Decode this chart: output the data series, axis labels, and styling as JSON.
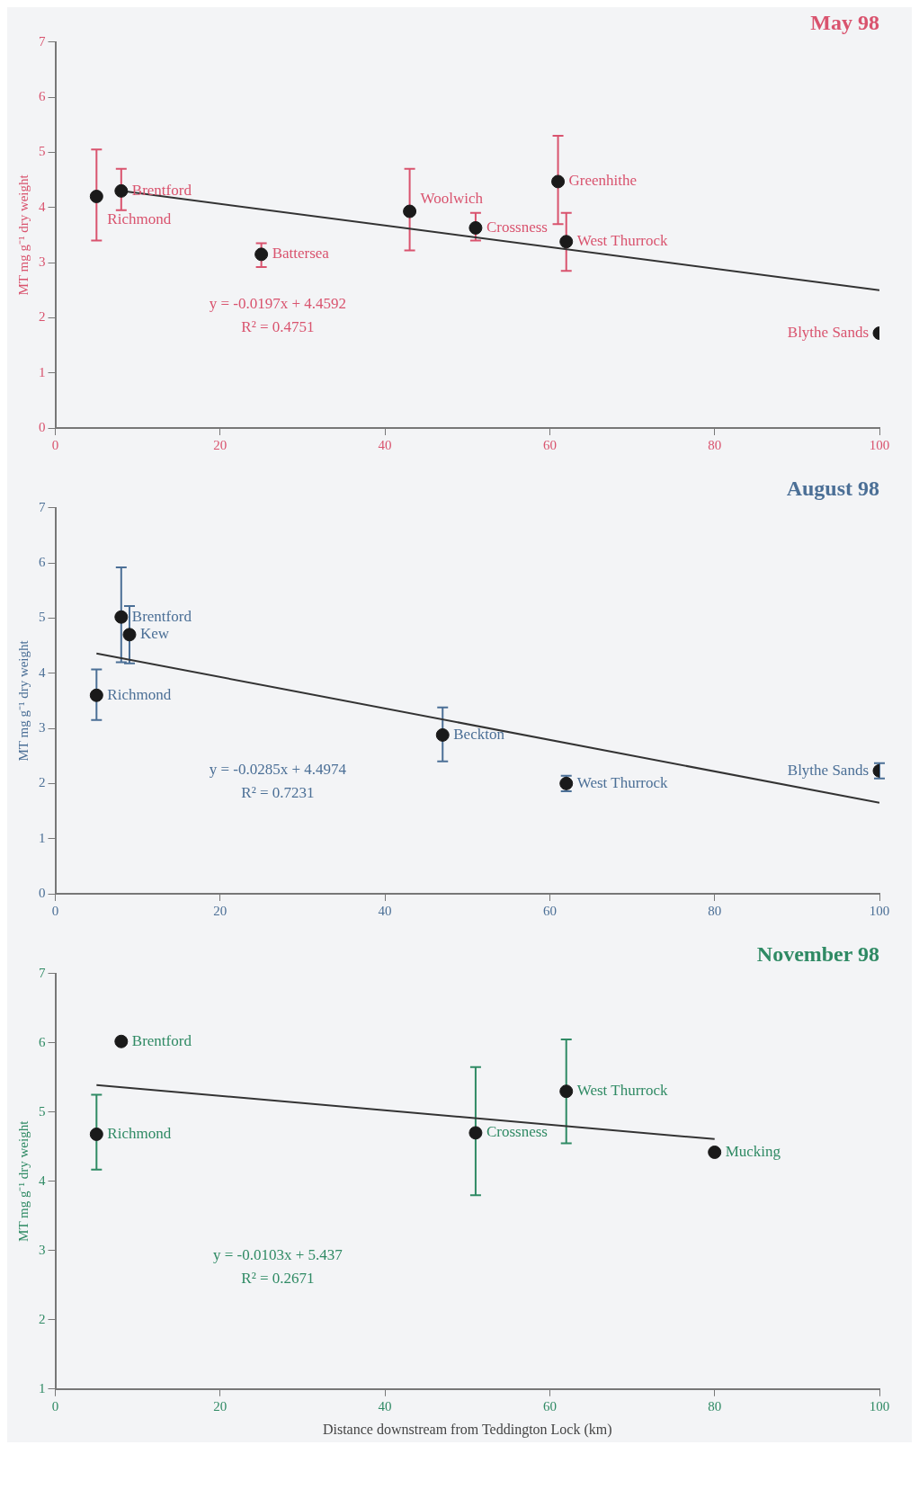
{
  "chart_data": [
    {
      "type": "scatter",
      "title": "May 98",
      "ylabel": "MT mg g⁻¹ dry weight",
      "xlim": [
        0,
        100
      ],
      "xticks": [
        0,
        20,
        40,
        60,
        80,
        100
      ],
      "ylim": [
        0,
        7
      ],
      "yticks": [
        0,
        1,
        2,
        3,
        4,
        5,
        6,
        7
      ],
      "grid": false,
      "legend": false,
      "series": [
        {
          "marker": "circle",
          "color": "#1a1a1a",
          "x": [
            5,
            8,
            25,
            43,
            51,
            61,
            62,
            100
          ],
          "values": [
            4.2,
            4.3,
            3.15,
            3.93,
            3.63,
            4.47,
            3.38,
            1.72
          ],
          "errors": [
            [
              3.4,
              5.05
            ],
            [
              3.95,
              4.7
            ],
            [
              2.92,
              3.35
            ],
            [
              3.22,
              4.7
            ],
            [
              3.4,
              3.9
            ],
            [
              3.7,
              5.3
            ],
            [
              2.85,
              3.9
            ],
            null
          ]
        },
        {
          "type": "line",
          "marker": "none",
          "color": "#333333",
          "x": [
            8,
            100
          ],
          "values": [
            4.3,
            2.5
          ]
        }
      ],
      "annotations": [
        "y = -0.0197x + 4.4592",
        "R² = 0.4751",
        {
          "text": "Richmond",
          "x": 5,
          "y": 4.2
        },
        {
          "text": "Brentford",
          "x": 8,
          "y": 4.3
        },
        {
          "text": "Battersea",
          "x": 25,
          "y": 3.15
        },
        {
          "text": "Woolwich",
          "x": 43,
          "y": 3.93
        },
        {
          "text": "Crossness",
          "x": 51,
          "y": 3.63
        },
        {
          "text": "Greenhithe",
          "x": 61,
          "y": 4.47
        },
        {
          "text": "West Thurrock",
          "x": 62,
          "y": 3.38
        },
        {
          "text": "Blythe Sands",
          "x": 100,
          "y": 1.72
        }
      ]
    },
    {
      "type": "scatter",
      "title": "August 98",
      "ylabel": "MT mg g⁻¹ dry weight",
      "xlim": [
        0,
        100
      ],
      "xticks": [
        0,
        20,
        40,
        60,
        80,
        100
      ],
      "ylim": [
        0,
        7
      ],
      "yticks": [
        0,
        1,
        2,
        3,
        4,
        5,
        6,
        7
      ],
      "grid": false,
      "legend": false,
      "series": [
        {
          "marker": "circle",
          "color": "#1a1a1a",
          "x": [
            5,
            8,
            9,
            47,
            62,
            100
          ],
          "values": [
            3.6,
            5.02,
            4.7,
            2.88,
            2.0,
            2.23
          ],
          "errors": [
            [
              3.15,
              4.07
            ],
            [
              4.2,
              5.92
            ],
            [
              4.18,
              5.22
            ],
            [
              2.4,
              3.38
            ],
            [
              1.86,
              2.14
            ],
            [
              2.09,
              2.37
            ]
          ]
        },
        {
          "type": "line",
          "marker": "none",
          "color": "#333333",
          "x": [
            5,
            100
          ],
          "values": [
            4.36,
            1.65
          ]
        }
      ],
      "annotations": [
        "y = -0.0285x + 4.4974",
        "R² = 0.7231",
        {
          "text": "Richmond",
          "x": 5,
          "y": 3.6
        },
        {
          "text": "Brentford",
          "x": 8,
          "y": 5.02
        },
        {
          "text": "Kew",
          "x": 9,
          "y": 4.7
        },
        {
          "text": "Beckton",
          "x": 47,
          "y": 2.88
        },
        {
          "text": "West Thurrock",
          "x": 62,
          "y": 2.0
        },
        {
          "text": "Blythe Sands",
          "x": 100,
          "y": 2.23
        }
      ]
    },
    {
      "type": "scatter",
      "title": "November 98",
      "xlabel": "Distance downstream from Teddington Lock (km)",
      "ylabel": "MT mg g⁻¹ dry weight",
      "xlim": [
        0,
        100
      ],
      "xticks": [
        0,
        20,
        40,
        60,
        80,
        100
      ],
      "ylim": [
        1,
        7
      ],
      "yticks": [
        1,
        2,
        3,
        4,
        5,
        6,
        7
      ],
      "grid": false,
      "legend": false,
      "series": [
        {
          "marker": "circle",
          "color": "#1a1a1a",
          "x": [
            5,
            8,
            51,
            62,
            80
          ],
          "values": [
            4.68,
            6.02,
            4.7,
            5.3,
            4.42
          ],
          "errors": [
            [
              4.17,
              5.25
            ],
            null,
            [
              3.8,
              5.65
            ],
            [
              4.55,
              6.05
            ],
            null
          ]
        },
        {
          "type": "line",
          "marker": "none",
          "color": "#333333",
          "x": [
            5,
            80
          ],
          "values": [
            5.39,
            4.61
          ]
        }
      ],
      "annotations": [
        "y = -0.0103x + 5.437",
        "R² = 0.2671",
        {
          "text": "Richmond",
          "x": 5,
          "y": 4.68
        },
        {
          "text": "Brentford",
          "x": 8,
          "y": 6.02
        },
        {
          "text": "Crossness",
          "x": 51,
          "y": 4.7
        },
        {
          "text": "West Thurrock",
          "x": 62,
          "y": 5.3
        },
        {
          "text": "Mucking",
          "x": 80,
          "y": 4.42
        }
      ]
    }
  ]
}
